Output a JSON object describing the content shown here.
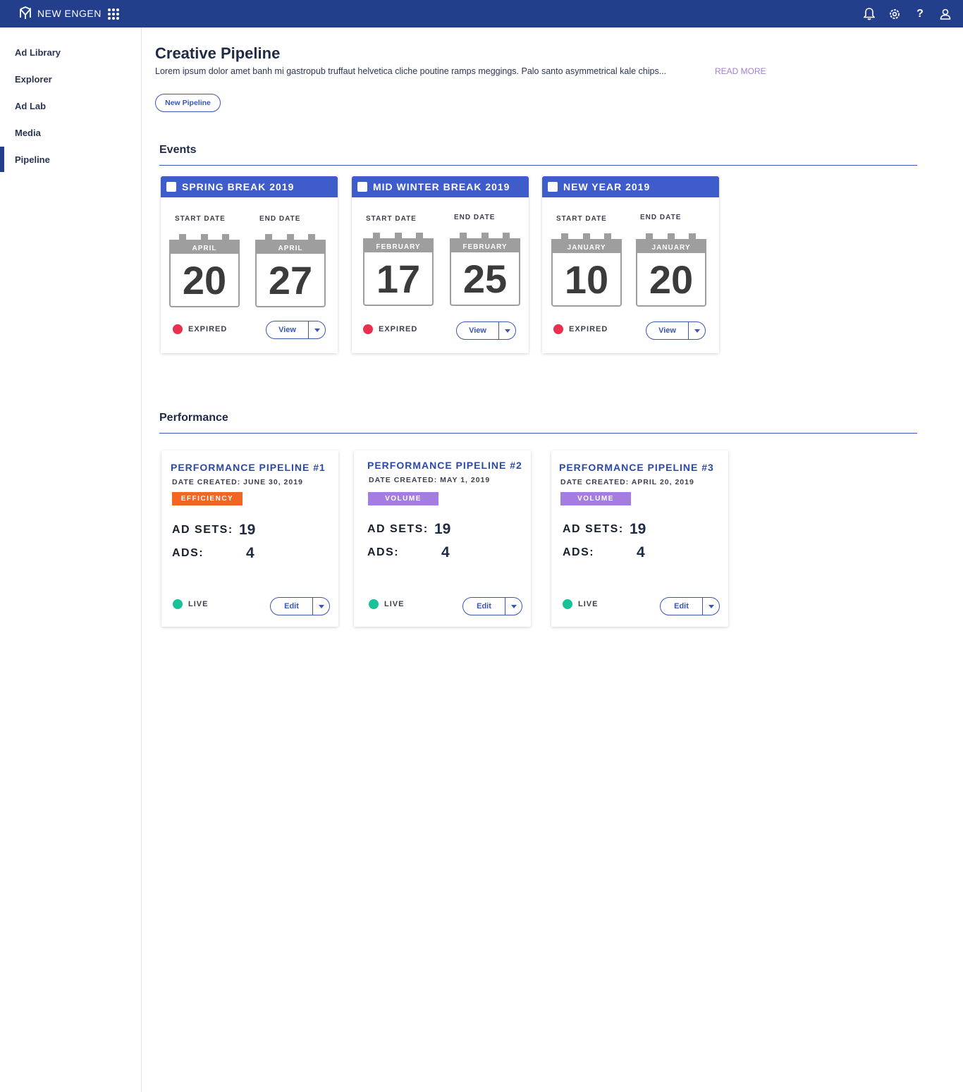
{
  "app": {
    "brand": "NEW ENGEN"
  },
  "sidebar": {
    "items": [
      {
        "label": "Ad Library"
      },
      {
        "label": "Explorer"
      },
      {
        "label": "Ad Lab"
      },
      {
        "label": "Media"
      },
      {
        "label": "Pipeline",
        "active": true
      }
    ]
  },
  "header": {
    "title": "Creative Pipeline",
    "description": "Lorem ipsum dolor amet banh mi gastropub truffaut helvetica cliche poutine ramps meggings. Palo santo asymmetrical kale chips...",
    "read_more": "READ MORE",
    "new_pipeline": "New Pipeline"
  },
  "events": {
    "title": "Events",
    "start_label": "START DATE",
    "end_label": "END DATE",
    "cards": [
      {
        "name": "SPRING BREAK 2019",
        "start_month": "APRIL",
        "start_day": "20",
        "end_month": "APRIL",
        "end_day": "27",
        "status": "EXPIRED",
        "action": "View"
      },
      {
        "name": "MID WINTER BREAK 2019",
        "start_month": "FEBRUARY",
        "start_day": "17",
        "end_month": "FEBRUARY",
        "end_day": "25",
        "status": "EXPIRED",
        "action": "View"
      },
      {
        "name": "NEW YEAR 2019",
        "start_month": "JANUARY",
        "start_day": "10",
        "end_month": "JANUARY",
        "end_day": "20",
        "status": "EXPIRED",
        "action": "View"
      }
    ]
  },
  "performance": {
    "title": "Performance",
    "ad_sets_label": "AD SETS:",
    "ads_label": "ADS:",
    "cards": [
      {
        "name": "PERFORMANCE PIPELINE #1",
        "date": "DATE CREATED: JUNE 30, 2019",
        "tag": "EFFICIENCY",
        "tag_color": "#f26522",
        "ad_sets": "19",
        "ads": "4",
        "status": "LIVE",
        "action": "Edit"
      },
      {
        "name": "PERFORMANCE PIPELINE #2",
        "date": "DATE CREATED: MAY 1, 2019",
        "tag": "VOLUME",
        "tag_color": "#a57de0",
        "ad_sets": "19",
        "ads": "4",
        "status": "LIVE",
        "action": "Edit"
      },
      {
        "name": "PERFORMANCE PIPELINE #3",
        "date": "DATE CREATED: APRIL 20, 2019",
        "tag": "VOLUME",
        "tag_color": "#a57de0",
        "ad_sets": "19",
        "ads": "4",
        "status": "LIVE",
        "action": "Edit"
      }
    ]
  },
  "colors": {
    "topbar": "#233f8c",
    "event_header": "#3f5ccb",
    "expired": "#e8304f",
    "live": "#16c296"
  }
}
